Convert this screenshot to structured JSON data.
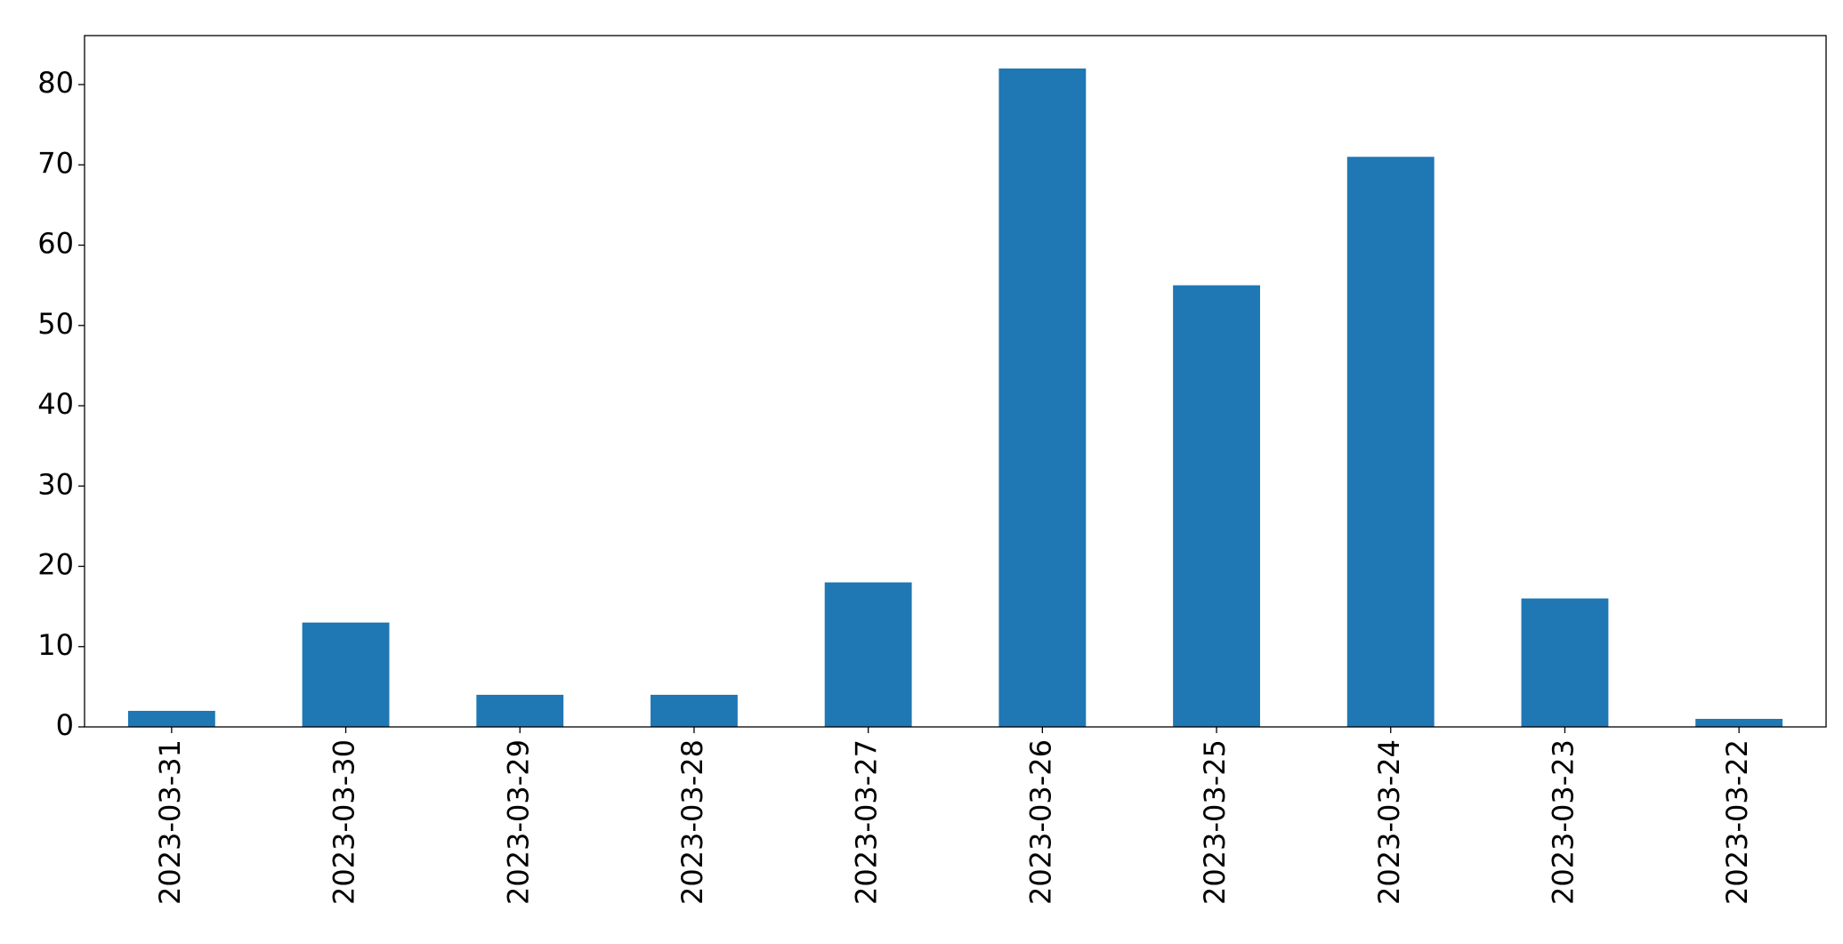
{
  "chart_data": {
    "type": "bar",
    "categories": [
      "2023-03-31",
      "2023-03-30",
      "2023-03-29",
      "2023-03-28",
      "2023-03-27",
      "2023-03-26",
      "2023-03-25",
      "2023-03-24",
      "2023-03-23",
      "2023-03-22"
    ],
    "values": [
      2,
      13,
      4,
      4,
      18,
      82,
      55,
      71,
      16,
      1
    ],
    "color": "#1f77b4",
    "ylim": [
      0,
      86.1
    ],
    "yticks": [
      0,
      10,
      20,
      30,
      40,
      50,
      60,
      70,
      80
    ],
    "grid": false
  }
}
